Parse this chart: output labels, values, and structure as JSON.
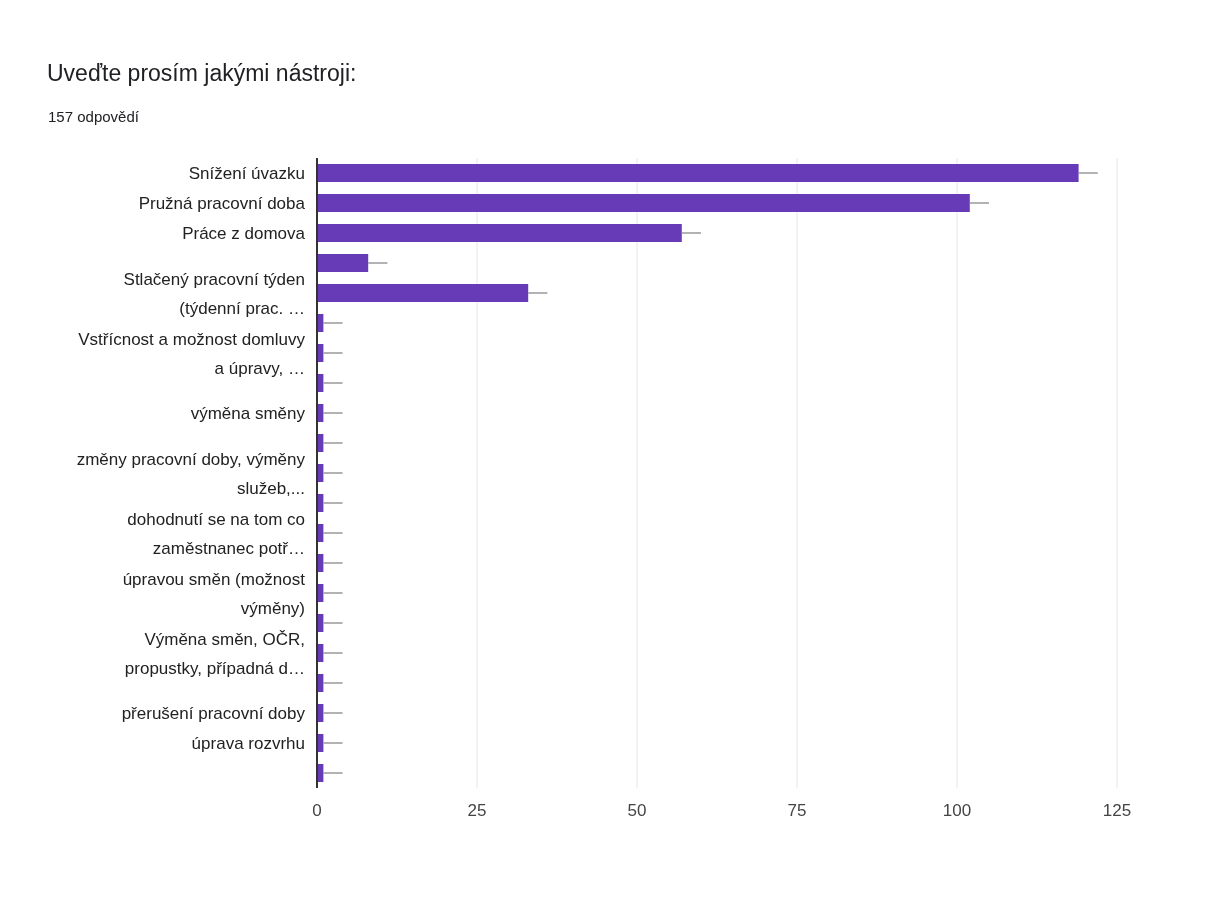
{
  "chart_data": {
    "type": "bar",
    "orientation": "horizontal",
    "title": "Uveďte prosím jakými nástroji:",
    "subtitle": "157 odpovědí",
    "categories": [
      "Snížení úvazku",
      "Pružná pracovní doba",
      "Práce z domova",
      null,
      "Stlačený pracovní týden\n(týdenní prac. …",
      null,
      "Vstřícnost a možnost domluvy\na úpravy, …",
      null,
      "výměna směny",
      null,
      "změny pracovní doby, výměny\nslužeb,...",
      null,
      "dohodnutí se na tom co\nzaměstnanec potř…",
      null,
      "úpravou směn (možnost\nvýměny)",
      null,
      "Výměna směn, OČR,\npropustky, případná d…",
      null,
      "přerušení pracovní doby",
      "úprava rozvrhu",
      null
    ],
    "values": [
      119,
      102,
      57,
      8,
      33,
      1,
      1,
      1,
      1,
      1,
      1,
      1,
      1,
      1,
      1,
      1,
      1,
      1,
      1,
      1,
      1
    ],
    "errors": [
      [
        119,
        122
      ],
      [
        102,
        105
      ],
      [
        57,
        60
      ],
      [
        8,
        11
      ],
      [
        33,
        36
      ],
      [
        1,
        4
      ],
      [
        1,
        4
      ],
      [
        1,
        4
      ],
      [
        1,
        4
      ],
      [
        1,
        4
      ],
      [
        1,
        4
      ],
      [
        1,
        4
      ],
      [
        1,
        4
      ],
      [
        1,
        4
      ],
      [
        1,
        4
      ],
      [
        1,
        4
      ],
      [
        1,
        4
      ],
      [
        1,
        4
      ],
      [
        1,
        4
      ],
      [
        1,
        4
      ],
      [
        1,
        4
      ]
    ],
    "color": "#673ab7",
    "xlim": [
      0,
      125
    ],
    "xticks": [
      0,
      25,
      50,
      75,
      100,
      125
    ],
    "grid": "x"
  }
}
